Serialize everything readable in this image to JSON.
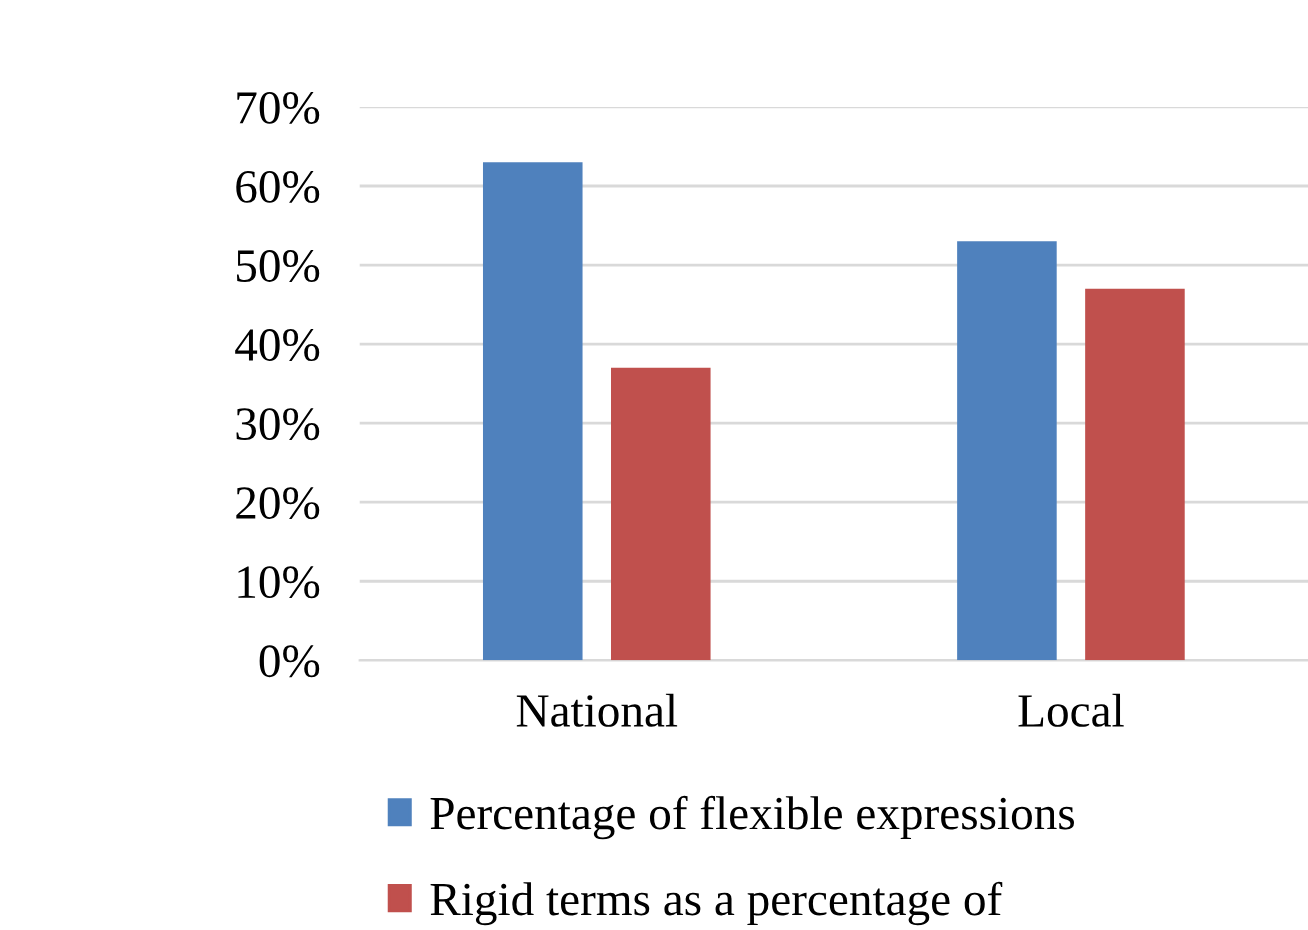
{
  "chart_data": {
    "type": "bar",
    "categories": [
      "National",
      "Local"
    ],
    "series": [
      {
        "name": "Percentage of flexible expressions",
        "color": "#4f81bd",
        "values": [
          63,
          53
        ]
      },
      {
        "name": "Rigid terms as a percentage of",
        "color": "#c0504d",
        "values": [
          37,
          47
        ]
      }
    ],
    "ylim": [
      0,
      70
    ],
    "yticks": [
      {
        "value": 0,
        "label": "0%"
      },
      {
        "value": 10,
        "label": "10%"
      },
      {
        "value": 20,
        "label": "20%"
      },
      {
        "value": 30,
        "label": "30%"
      },
      {
        "value": 40,
        "label": "40%"
      },
      {
        "value": 50,
        "label": "50%"
      },
      {
        "value": 60,
        "label": "60%"
      },
      {
        "value": 70,
        "label": "70%"
      }
    ],
    "grid": "y",
    "legend": "bottom"
  }
}
